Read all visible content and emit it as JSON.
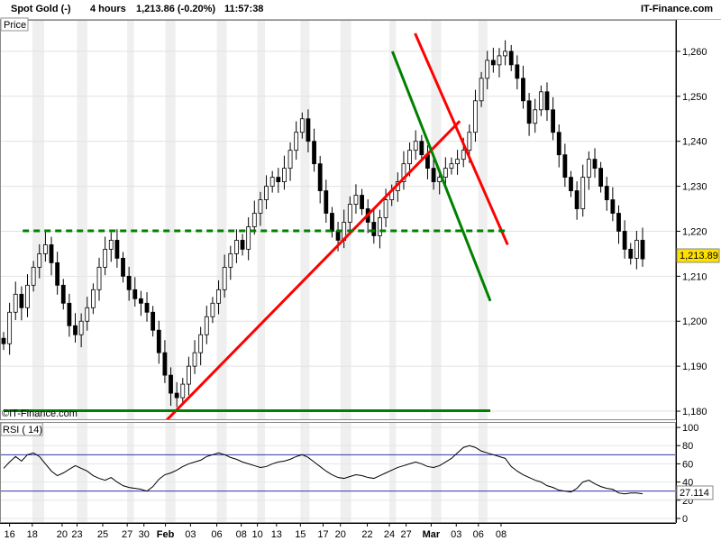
{
  "header": {
    "instrument": "Spot Gold (-)",
    "timeframe": "4 hours",
    "quote": "1,213.86 (-0.20%)",
    "time": "11:57:38",
    "source": "IT-Finance.com"
  },
  "chart_data": [
    {
      "type": "candlestick",
      "title": "",
      "panel_label": "Price",
      "watermark": "©IT-Finance.com",
      "ylim": [
        1178,
        1267
      ],
      "y_ticks": [
        {
          "value": 1180,
          "label": "1,180"
        },
        {
          "value": 1190,
          "label": "1,190"
        },
        {
          "value": 1200,
          "label": "1,200"
        },
        {
          "value": 1210,
          "label": "1,210"
        },
        {
          "value": 1220,
          "label": "1,220"
        },
        {
          "value": 1230,
          "label": "1,230"
        },
        {
          "value": 1240,
          "label": "1,240"
        },
        {
          "value": 1250,
          "label": "1,250"
        },
        {
          "value": 1260,
          "label": "1,260"
        }
      ],
      "last_price": {
        "value": 1213.89,
        "label": "1,213.89"
      },
      "closes": [
        1195,
        1202,
        1206,
        1203,
        1208,
        1212,
        1215,
        1217,
        1213,
        1208,
        1204,
        1199,
        1197,
        1200,
        1203,
        1207,
        1212,
        1216,
        1218,
        1214,
        1210,
        1207,
        1205,
        1204,
        1202,
        1198,
        1193,
        1188,
        1184,
        1183,
        1186,
        1190,
        1193,
        1197,
        1201,
        1204,
        1207,
        1212,
        1215,
        1218,
        1216,
        1221,
        1224,
        1227,
        1230,
        1232,
        1231,
        1234,
        1238,
        1242,
        1245,
        1240,
        1235,
        1229,
        1224,
        1220,
        1218,
        1222,
        1226,
        1228,
        1225,
        1222,
        1219,
        1223,
        1227,
        1229,
        1231,
        1235,
        1238,
        1240,
        1237,
        1234,
        1231,
        1232,
        1234,
        1235,
        1236,
        1238,
        1242,
        1249,
        1254,
        1258,
        1257,
        1259,
        1260,
        1257,
        1254,
        1249,
        1244,
        1247,
        1251,
        1247,
        1242,
        1237,
        1232,
        1229,
        1225,
        1232,
        1236,
        1234,
        1230,
        1227,
        1224,
        1220,
        1216,
        1214,
        1218,
        1213.86
      ],
      "annotations": [
        {
          "kind": "line",
          "color": "#ff0000",
          "from": {
            "time": 27.3,
            "price": 1178
          },
          "to": {
            "time": 76.4,
            "price": 1244.5
          }
        },
        {
          "kind": "line",
          "color": "#ff0000",
          "from": {
            "time": 68.9,
            "price": 1264
          },
          "to": {
            "time": 84.4,
            "price": 1217
          }
        },
        {
          "kind": "line",
          "color": "#008000",
          "from": {
            "time": 65.1,
            "price": 1260
          },
          "to": {
            "time": 81.5,
            "price": 1204.5
          }
        },
        {
          "kind": "line",
          "color": "#008000",
          "dashed": true,
          "from": {
            "time": 3.2,
            "price": 1220.1
          },
          "to": {
            "time": 84.4,
            "price": 1220.1
          }
        },
        {
          "kind": "line",
          "color": "#008000",
          "from": {
            "time": 0,
            "price": 1180.1
          },
          "to": {
            "time": 81.5,
            "price": 1180.1
          }
        }
      ]
    },
    {
      "type": "line",
      "title": "",
      "panel_label": "RSI ( 14)",
      "ylim": [
        -5,
        105
      ],
      "y_ticks": [
        {
          "value": 0,
          "label": "0"
        },
        {
          "value": 20,
          "label": "20"
        },
        {
          "value": 40,
          "label": "40"
        },
        {
          "value": 60,
          "label": "60"
        },
        {
          "value": 80,
          "label": "80"
        },
        {
          "value": 100,
          "label": "100"
        }
      ],
      "levels": [
        70,
        30
      ],
      "last_value": {
        "value": 27.114,
        "label": "27.114"
      },
      "values": [
        55,
        62,
        68,
        63,
        70,
        72,
        68,
        60,
        52,
        47,
        50,
        54,
        58,
        55,
        52,
        47,
        44,
        42,
        45,
        40,
        36,
        34,
        33,
        32,
        30,
        35,
        43,
        48,
        50,
        53,
        57,
        60,
        62,
        64,
        68,
        70,
        72,
        70,
        67,
        65,
        62,
        60,
        58,
        56,
        57,
        60,
        62,
        63,
        65,
        68,
        70,
        67,
        62,
        57,
        52,
        48,
        45,
        44,
        46,
        48,
        47,
        45,
        44,
        47,
        50,
        53,
        56,
        58,
        60,
        62,
        60,
        57,
        56,
        58,
        62,
        66,
        72,
        78,
        80,
        78,
        74,
        72,
        70,
        68,
        66,
        57,
        52,
        48,
        45,
        42,
        40,
        36,
        34,
        31,
        30,
        29,
        33,
        40,
        42,
        38,
        35,
        33,
        32,
        28,
        27,
        28,
        28,
        27.114
      ]
    }
  ],
  "time_axis": {
    "labels": [
      {
        "t": 1.0,
        "text": "16"
      },
      {
        "t": 4.8,
        "text": "18"
      },
      {
        "t": 9.8,
        "text": "20"
      },
      {
        "t": 12.3,
        "text": "23"
      },
      {
        "t": 16.6,
        "text": "25"
      },
      {
        "t": 20.7,
        "text": "27"
      },
      {
        "t": 23.5,
        "text": "30"
      },
      {
        "t": 27.1,
        "text": "Feb",
        "bold": true
      },
      {
        "t": 31.3,
        "text": "03"
      },
      {
        "t": 35.7,
        "text": "06"
      },
      {
        "t": 39.8,
        "text": "08"
      },
      {
        "t": 42.5,
        "text": "10"
      },
      {
        "t": 45.7,
        "text": "13"
      },
      {
        "t": 49.7,
        "text": "15"
      },
      {
        "t": 53.5,
        "text": "17"
      },
      {
        "t": 56.4,
        "text": "20"
      },
      {
        "t": 60.9,
        "text": "22"
      },
      {
        "t": 64.6,
        "text": "24"
      },
      {
        "t": 67.4,
        "text": "27"
      },
      {
        "t": 71.6,
        "text": "Mar",
        "bold": true
      },
      {
        "t": 75.8,
        "text": "03"
      },
      {
        "t": 79.5,
        "text": "06"
      },
      {
        "t": 83.3,
        "text": "08"
      }
    ]
  }
}
